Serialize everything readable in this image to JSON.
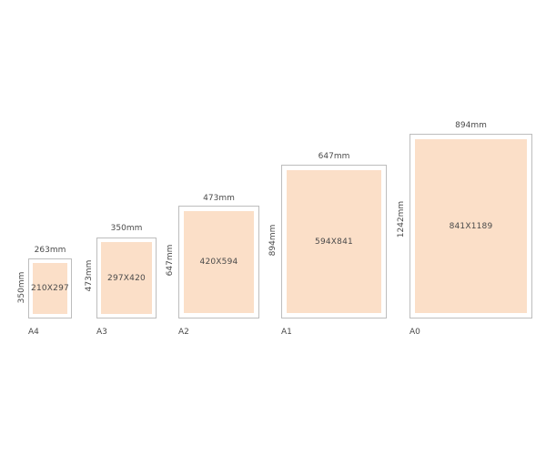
{
  "colors": {
    "fill": "#fbdfc8",
    "frame_border": "#bdbdbd",
    "text": "#4a4a4a"
  },
  "sizes": [
    {
      "name": "A4",
      "paper": "210X297",
      "frame_width": "263mm",
      "frame_height": "350mm"
    },
    {
      "name": "A3",
      "paper": "297X420",
      "frame_width": "350mm",
      "frame_height": "473mm"
    },
    {
      "name": "A2",
      "paper": "420X594",
      "frame_width": "473mm",
      "frame_height": "647mm"
    },
    {
      "name": "A1",
      "paper": "594X841",
      "frame_width": "647mm",
      "frame_height": "894mm"
    },
    {
      "name": "A0",
      "paper": "841X1189",
      "frame_width": "894mm",
      "frame_height": "1242mm"
    }
  ]
}
